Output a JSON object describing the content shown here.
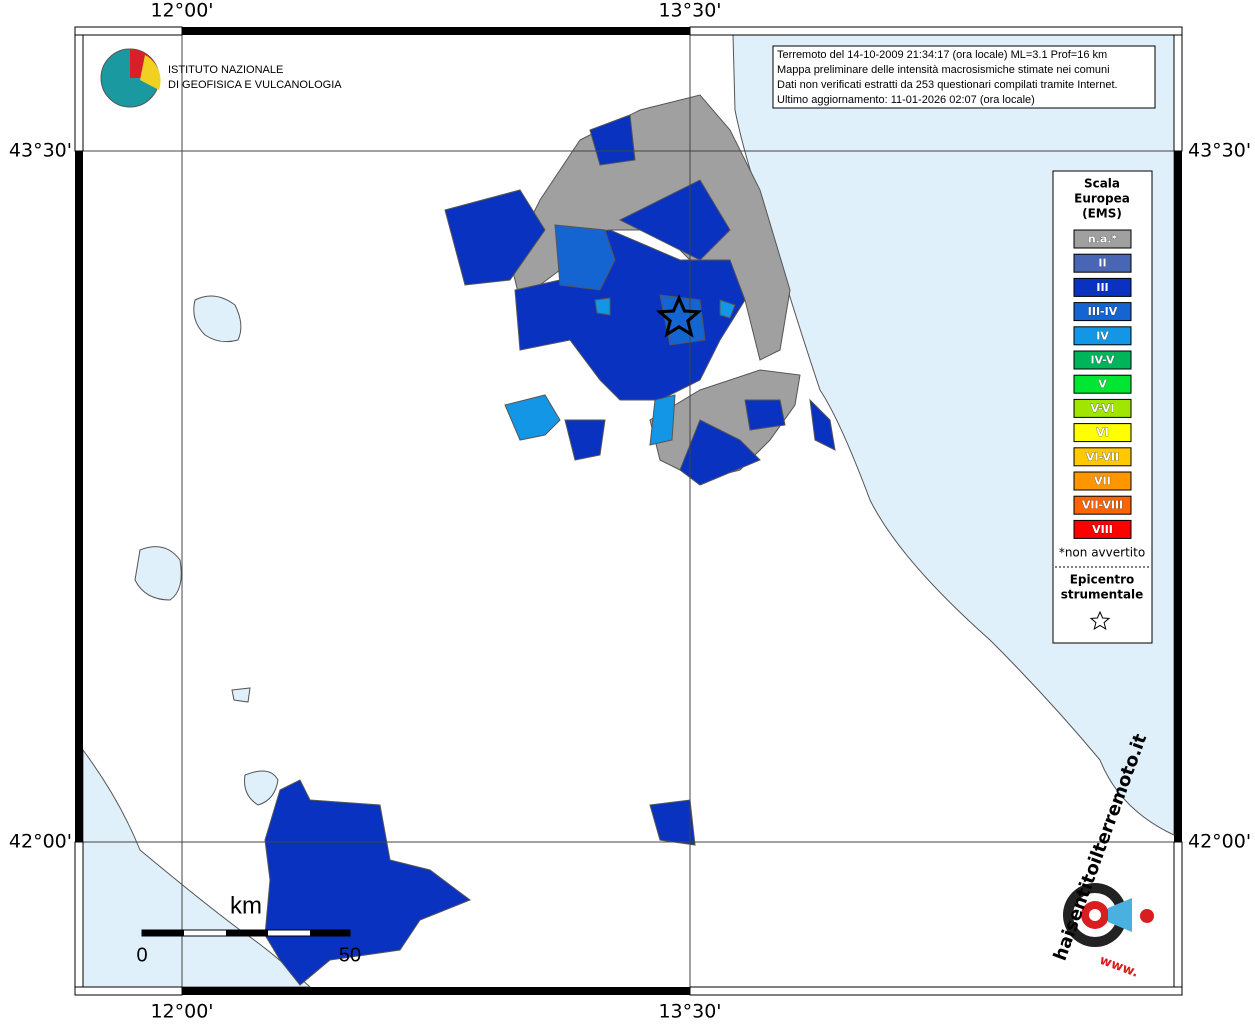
{
  "map": {
    "coordinates": {
      "lon_left": "12°00'",
      "lon_right": "13°30'",
      "lat_top": "43°30'",
      "lat_bottom": "42°00'"
    },
    "institute": {
      "line1": "ISTITUTO NAZIONALE",
      "line2": "DI GEOFISICA E VULCANOLOGIA"
    },
    "info": [
      "Terremoto del 14-10-2009 21:34:17 (ora locale) ML=3.1 Prof=16 km",
      "Mappa preliminare delle intensità macrosismiche stimate nei comuni",
      "Dati non verificati estratti da 253 questionari compilati tramite Internet.",
      "Ultimo aggiornamento: 11-01-2026 02:07 (ora locale)"
    ],
    "legend": {
      "title": [
        "Scala",
        "Europea",
        "(EMS)"
      ],
      "items": [
        {
          "label": "n.a.*",
          "color": "#a0a0a0"
        },
        {
          "label": "II",
          "color": "#4866b4"
        },
        {
          "label": "III",
          "color": "#0a32c0"
        },
        {
          "label": "III-IV",
          "color": "#1464d2"
        },
        {
          "label": "IV",
          "color": "#1496e6"
        },
        {
          "label": "IV-V",
          "color": "#00b45a"
        },
        {
          "label": "V",
          "color": "#00e632"
        },
        {
          "label": "V-VI",
          "color": "#a0e600"
        },
        {
          "label": "VI",
          "color": "#ffff00"
        },
        {
          "label": "VI-VII",
          "color": "#ffc800"
        },
        {
          "label": "VII",
          "color": "#ff9600"
        },
        {
          "label": "VII-VIII",
          "color": "#ff6400"
        },
        {
          "label": "VIII",
          "color": "#ff0000"
        }
      ],
      "note": "*non avvertito",
      "epicenter": [
        "Epicentro",
        "strumentale"
      ]
    },
    "scale": {
      "unit": "km",
      "start": "0",
      "end": "50"
    },
    "logo": {
      "name": "haisentitoilterremoto.it",
      "prefix": "www."
    }
  }
}
